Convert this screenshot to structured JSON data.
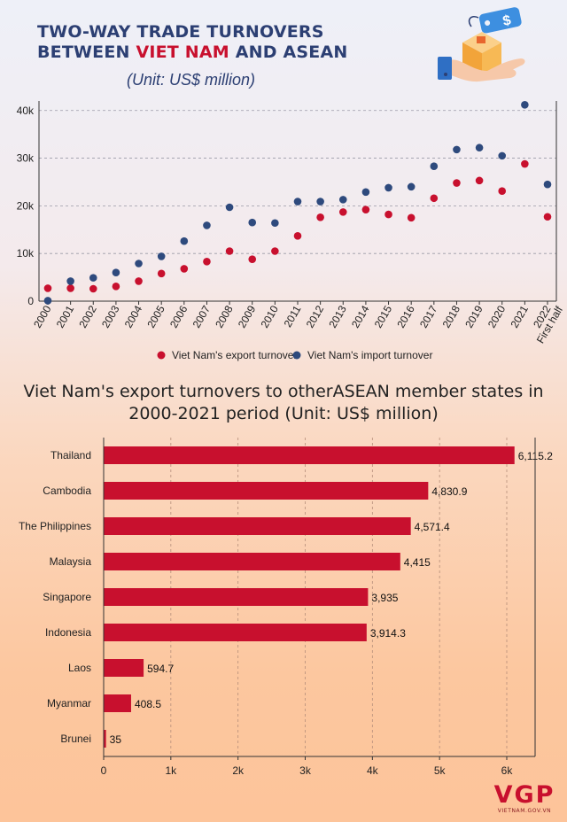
{
  "header": {
    "title_line1": "TWO-WAY TRADE TURNOVERS",
    "title_line2_pre": "BETWEEN ",
    "title_line2_highlight": "VIET NAM",
    "title_line2_post": " AND ASEAN",
    "unit": "(Unit: US$ million)"
  },
  "logo": {
    "mark": "VGP",
    "site": "VIETNAM.GOV.VN"
  },
  "colors": {
    "export": "#c8102e",
    "import": "#2e4a7d",
    "bar": "#c8102e",
    "title_navy": "#2c3f73"
  },
  "chart_data": [
    {
      "type": "scatter",
      "title": "TWO-WAY TRADE TURNOVERS BETWEEN VIET NAM AND ASEAN",
      "subtitle": "(Unit: US$ million)",
      "xlabel": "",
      "ylabel": "",
      "categories": [
        "2000",
        "2001",
        "2002",
        "2003",
        "2004",
        "2005",
        "2006",
        "2007",
        "2008",
        "2009",
        "2010",
        "2011",
        "2012",
        "2013",
        "2014",
        "2015",
        "2016",
        "2017",
        "2018",
        "2019",
        "2020",
        "2021",
        "2022 First half"
      ],
      "y_ticks": [
        "0",
        "10k",
        "20k",
        "30k",
        "40k"
      ],
      "ylim": [
        0,
        42000
      ],
      "grid": "horizontal dashed",
      "legend_position": "bottom",
      "series": [
        {
          "name": "Viet Nam's export turnover",
          "color": "#c8102e",
          "values": [
            2700,
            2700,
            2600,
            3100,
            4200,
            5800,
            6800,
            8300,
            10500,
            8800,
            10500,
            13700,
            17600,
            18700,
            19200,
            18200,
            17500,
            21600,
            24800,
            25300,
            23100,
            28800,
            17700
          ]
        },
        {
          "name": "Viet Nam's import turnover",
          "color": "#2e4a7d",
          "values": [
            100,
            4200,
            4900,
            6000,
            7900,
            9400,
            12600,
            15900,
            19700,
            16500,
            16400,
            20900,
            20900,
            21300,
            22900,
            23800,
            24000,
            28300,
            31800,
            32200,
            30500,
            41200,
            24500
          ]
        }
      ]
    },
    {
      "type": "bar",
      "orientation": "horizontal",
      "title": "Viet Nam's export turnovers to otherASEAN member states in 2000-2021 period (Unit: US$ million)",
      "categories": [
        "Thailand",
        "Cambodia",
        "The Philippines",
        "Malaysia",
        "Singapore",
        "Indonesia",
        "Laos",
        "Myanmar",
        "Brunei"
      ],
      "values": [
        6115.2,
        4830.9,
        4571.4,
        4415,
        3935,
        3914.3,
        594.7,
        408.5,
        35
      ],
      "value_labels": [
        "6,115.2",
        "4,830.9",
        "4,571.4",
        "4,415",
        "3,935",
        "3,914.3",
        "594.7",
        "408.5",
        "35"
      ],
      "x_ticks": [
        "0",
        "1k",
        "2k",
        "3k",
        "4k",
        "5k",
        "6k"
      ],
      "xlim": [
        0,
        6500
      ]
    }
  ]
}
